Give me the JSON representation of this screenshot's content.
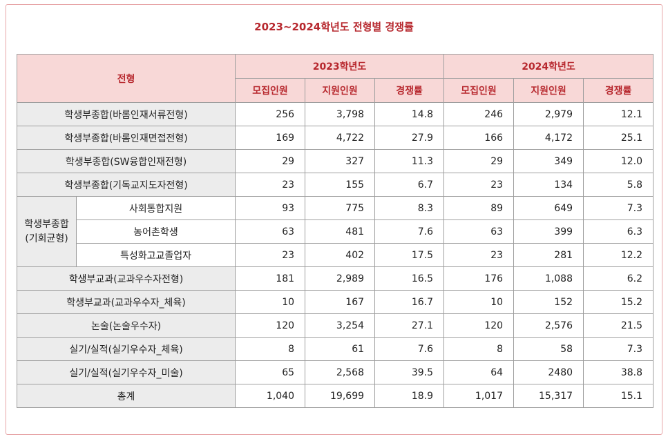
{
  "title": "2023~2024학년도 전형별 경쟁률",
  "header": {
    "type_label": "전형",
    "year1": "2023학년도",
    "year2": "2024학년도",
    "col_recruit": "모집인원",
    "col_apply": "지원인원",
    "col_rate": "경쟁률"
  },
  "group": {
    "label_line1": "학생부종합",
    "label_line2": "(기회균형)"
  },
  "rows": [
    {
      "name": "학생부종합(바롬인재서류전형)",
      "r23": "256",
      "a23": "3,798",
      "c23": "14.8",
      "r24": "246",
      "a24": "2,979",
      "c24": "12.1"
    },
    {
      "name": "학생부종합(바롬인재면접전형)",
      "r23": "169",
      "a23": "4,722",
      "c23": "27.9",
      "r24": "166",
      "a24": "4,172",
      "c24": "25.1"
    },
    {
      "name": "학생부종합(SW융합인재전형)",
      "r23": "29",
      "a23": "327",
      "c23": "11.3",
      "r24": "29",
      "a24": "349",
      "c24": "12.0"
    },
    {
      "name": "학생부종합(기독교지도자전형)",
      "r23": "23",
      "a23": "155",
      "c23": "6.7",
      "r24": "23",
      "a24": "134",
      "c24": "5.8"
    },
    {
      "name": "사회통합지원",
      "r23": "93",
      "a23": "775",
      "c23": "8.3",
      "r24": "89",
      "a24": "649",
      "c24": "7.3"
    },
    {
      "name": "농어촌학생",
      "r23": "63",
      "a23": "481",
      "c23": "7.6",
      "r24": "63",
      "a24": "399",
      "c24": "6.3"
    },
    {
      "name": "특성화고교졸업자",
      "r23": "23",
      "a23": "402",
      "c23": "17.5",
      "r24": "23",
      "a24": "281",
      "c24": "12.2"
    },
    {
      "name": "학생부교과(교과우수자전형)",
      "r23": "181",
      "a23": "2,989",
      "c23": "16.5",
      "r24": "176",
      "a24": "1,088",
      "c24": "6.2"
    },
    {
      "name": "학생부교과(교과우수자_체육)",
      "r23": "10",
      "a23": "167",
      "c23": "16.7",
      "r24": "10",
      "a24": "152",
      "c24": "15.2"
    },
    {
      "name": "논술(논술우수자)",
      "r23": "120",
      "a23": "3,254",
      "c23": "27.1",
      "r24": "120",
      "a24": "2,576",
      "c24": "21.5"
    },
    {
      "name": "실기/실적(실기우수자_체육)",
      "r23": "8",
      "a23": "61",
      "c23": "7.6",
      "r24": "8",
      "a24": "58",
      "c24": "7.3"
    },
    {
      "name": "실기/실적(실기우수자_미술)",
      "r23": "65",
      "a23": "2,568",
      "c23": "39.5",
      "r24": "64",
      "a24": "2480",
      "c24": "38.8"
    },
    {
      "name": "총계",
      "r23": "1,040",
      "a23": "19,699",
      "c23": "18.9",
      "r24": "1,017",
      "a24": "15,317",
      "c24": "15.1"
    }
  ]
}
